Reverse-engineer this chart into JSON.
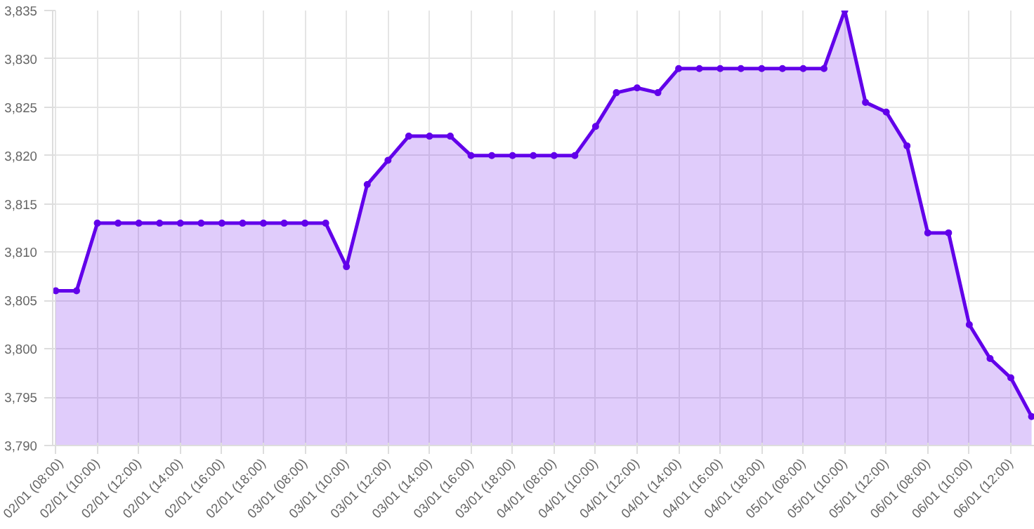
{
  "chart_data": {
    "type": "area",
    "categories": [
      "02/01 (08:00)",
      null,
      "02/01 (10:00)",
      null,
      "02/01 (12:00)",
      null,
      "02/01 (14:00)",
      null,
      "02/01 (16:00)",
      null,
      "02/01 (18:00)",
      null,
      "03/01 (08:00)",
      null,
      "03/01 (10:00)",
      null,
      "03/01 (12:00)",
      null,
      "03/01 (14:00)",
      null,
      "03/01 (16:00)",
      null,
      "03/01 (18:00)",
      null,
      "04/01 (08:00)",
      null,
      "04/01 (10:00)",
      null,
      "04/01 (12:00)",
      null,
      "04/01 (14:00)",
      null,
      "04/01 (16:00)",
      null,
      "04/01 (18:00)",
      null,
      "05/01 (08:00)",
      null,
      "05/01 (10:00)",
      null,
      "05/01 (12:00)",
      null,
      "06/01 (08:00)",
      null,
      "06/01 (10:00)",
      null,
      "06/01 (12:00)",
      null
    ],
    "series": [
      {
        "color": "#6200ea",
        "values": [
          3806,
          3806,
          3813,
          3813,
          3813,
          3813,
          3813,
          3813,
          3813,
          3813,
          3813,
          3813,
          3813,
          3813,
          3808.5,
          3817,
          3819.5,
          3822,
          3822,
          3822,
          3820,
          3820,
          3820,
          3820,
          3820,
          3820,
          3823,
          3826.5,
          3827,
          3826.5,
          3829,
          3829,
          3829,
          3829,
          3829,
          3829,
          3829,
          3829,
          3835,
          3825.5,
          3824.5,
          3821,
          3812,
          3812,
          3802.5,
          3799,
          3797,
          3793
        ]
      }
    ],
    "ylim": [
      3790,
      3835
    ],
    "yticks": [
      {
        "value": 3790,
        "label": "3,790"
      },
      {
        "value": 3795,
        "label": "3,795"
      },
      {
        "value": 3800,
        "label": "3,800"
      },
      {
        "value": 3805,
        "label": "3,805"
      },
      {
        "value": 3810,
        "label": "3,810"
      },
      {
        "value": 3815,
        "label": "3,815"
      },
      {
        "value": 3820,
        "label": "3,820"
      },
      {
        "value": 3825,
        "label": "3,825"
      },
      {
        "value": 3830,
        "label": "3,830"
      },
      {
        "value": 3835,
        "label": "3,835"
      }
    ],
    "grid": true,
    "marker": "circle",
    "line_style": "solid"
  }
}
